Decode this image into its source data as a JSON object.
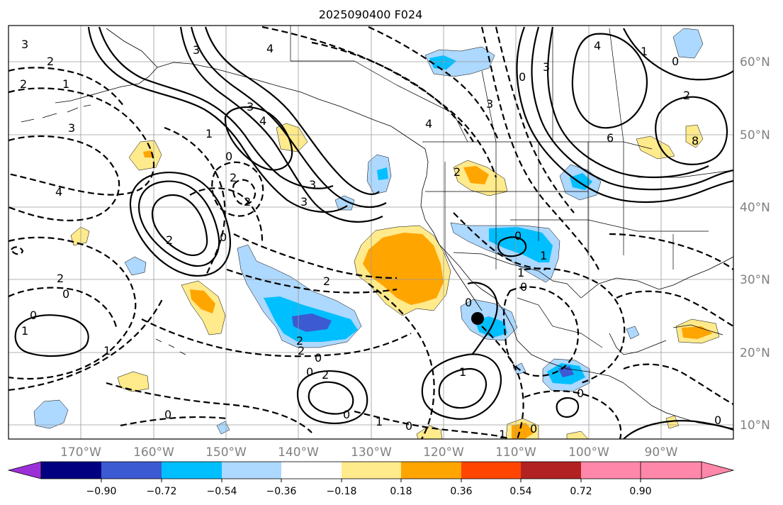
{
  "title": "2025090400 F024",
  "map": {
    "lat_labels": [
      "60°N",
      "50°N",
      "40°N",
      "30°N",
      "20°N",
      "10°N"
    ],
    "lon_labels": [
      "170°W",
      "160°W",
      "150°W",
      "140°W",
      "130°W",
      "120°W",
      "110°W",
      "100°W",
      "90°W"
    ]
  },
  "colorbar": {
    "colors": [
      "#9b30d9",
      "#000080",
      "#3c5ad2",
      "#00bfff",
      "#add8ff",
      "#ffffff",
      "#ffea8c",
      "#ffa500",
      "#ff4500",
      "#b22222",
      "#ff88aa"
    ],
    "tick_labels": [
      "−0.90",
      "−0.72",
      "−0.54",
      "−0.36",
      "−0.18",
      "0.18",
      "0.36",
      "0.54",
      "0.72",
      "0.90"
    ]
  },
  "contour_labels": [
    "3",
    "2",
    "1",
    "2",
    "4",
    "3",
    "4",
    "3",
    "3",
    "0",
    "1",
    "0",
    "6",
    "8",
    "3",
    "4",
    "1",
    "4",
    "3",
    "0",
    "2",
    "2",
    "3",
    "2",
    "4",
    "3",
    "2",
    "2",
    "0",
    "2",
    "0",
    "2",
    "2",
    "0",
    "1",
    "0",
    "0",
    "1",
    "2",
    "0",
    "2",
    "0",
    "1",
    "1",
    "0",
    "0",
    "1",
    "0",
    "0",
    "1",
    "1",
    "0",
    "0",
    "0"
  ],
  "marker": "storm-center"
}
